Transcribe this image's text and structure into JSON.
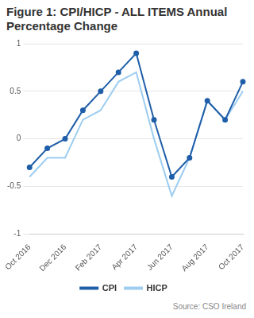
{
  "chart_data": {
    "type": "line",
    "title": "Figure 1: CPI/HICP - ALL ITEMS Annual Percentage Change",
    "source": "Source: CSO Ireland",
    "categories": [
      "Oct 2016",
      null,
      "Dec 2016",
      null,
      "Feb 2017",
      null,
      "Apr 2017",
      null,
      "Jun 2017",
      null,
      "Aug 2017",
      null,
      "Oct 2017"
    ],
    "series": [
      {
        "name": "CPI",
        "color": "#1f5ea8",
        "marker": "circle",
        "line_style": "solid",
        "values": [
          -0.3,
          -0.1,
          0.0,
          0.3,
          0.5,
          0.7,
          0.9,
          0.2,
          -0.4,
          -0.2,
          0.4,
          0.2,
          0.6
        ]
      },
      {
        "name": "HICP",
        "color": "#9dcdf0",
        "marker": "none",
        "line_style": "solid",
        "values": [
          -0.4,
          -0.2,
          -0.2,
          0.2,
          0.3,
          0.6,
          0.7,
          0.0,
          -0.6,
          -0.2,
          0.4,
          0.2,
          0.5
        ]
      }
    ],
    "ylim": [
      -1,
      1
    ],
    "yticks": [
      -1,
      -0.5,
      0,
      0.5,
      1
    ],
    "grid": true,
    "legend": "bottom"
  }
}
